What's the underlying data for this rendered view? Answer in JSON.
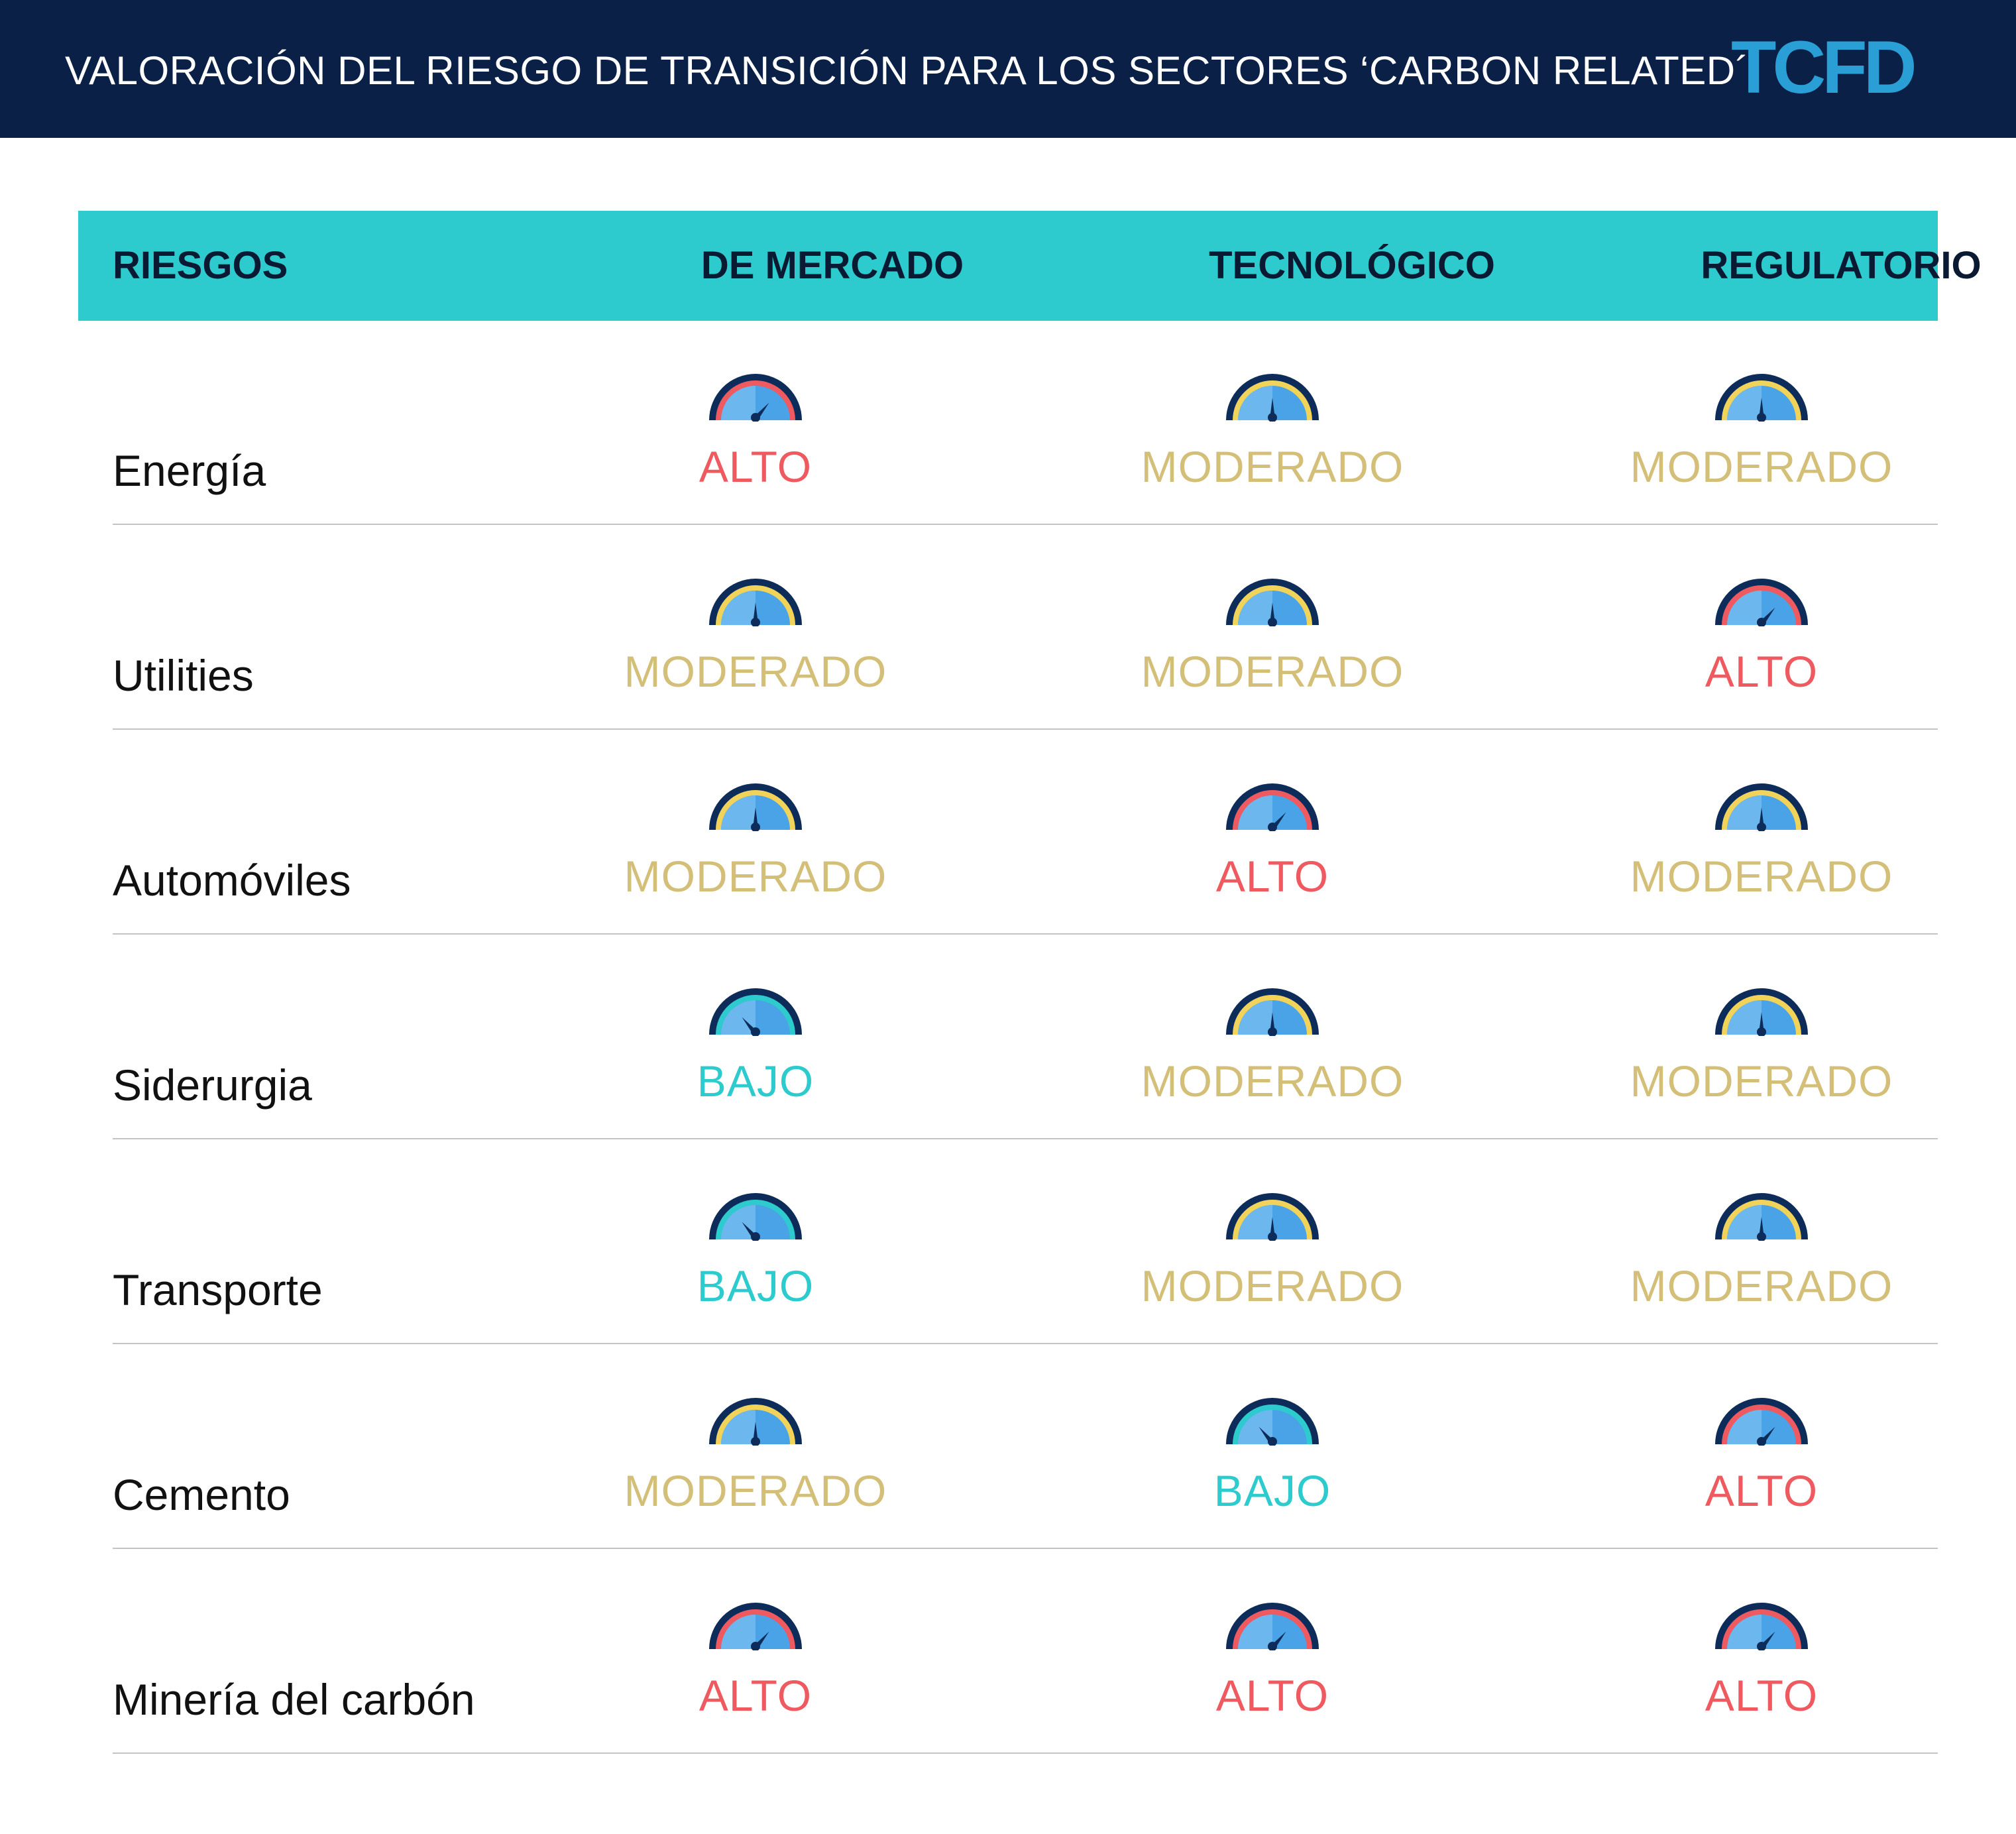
{
  "title": "VALORACIÓN DEL RIESGO DE TRANSICIÓN PARA LOS SECTORES ‘CARBON RELATED´",
  "logo_text": "TCFD",
  "colors": {
    "header_bg": "#0a2046",
    "table_header_bg": "#2ecbce",
    "alto": "#ee5a5f",
    "moderado": "#d4bf78",
    "bajo": "#2ecbce",
    "gauge_fill": "#4aa3e6",
    "gauge_outline": "#0d2c5a",
    "logo": "#2a9fd6"
  },
  "columns": [
    "RIESGOS",
    "DE MERCADO",
    "TECNOLÓGICO",
    "REGULATORIO"
  ],
  "rows": [
    {
      "sector": "Energía",
      "levels": [
        "ALTO",
        "MODERADO",
        "MODERADO"
      ],
      "kinds": [
        "alto",
        "moderado",
        "moderado"
      ]
    },
    {
      "sector": "Utilities",
      "levels": [
        "MODERADO",
        "MODERADO",
        "ALTO"
      ],
      "kinds": [
        "moderado",
        "moderado",
        "alto"
      ]
    },
    {
      "sector": "Automóviles",
      "levels": [
        "MODERADO",
        "ALTO",
        "MODERADO"
      ],
      "kinds": [
        "moderado",
        "alto",
        "moderado"
      ]
    },
    {
      "sector": "Siderurgia",
      "levels": [
        "BAJO",
        "MODERADO",
        "MODERADO"
      ],
      "kinds": [
        "bajo",
        "moderado",
        "moderado"
      ]
    },
    {
      "sector": "Transporte",
      "levels": [
        "BAJO",
        "MODERADO",
        "MODERADO"
      ],
      "kinds": [
        "bajo",
        "moderado",
        "moderado"
      ]
    },
    {
      "sector": "Cemento",
      "levels": [
        "MODERADO",
        "BAJO",
        "ALTO"
      ],
      "kinds": [
        "moderado",
        "bajo",
        "alto"
      ]
    },
    {
      "sector": "Minería del carbón",
      "levels": [
        "ALTO",
        "ALTO",
        "ALTO"
      ],
      "kinds": [
        "alto",
        "alto",
        "alto"
      ]
    }
  ]
}
